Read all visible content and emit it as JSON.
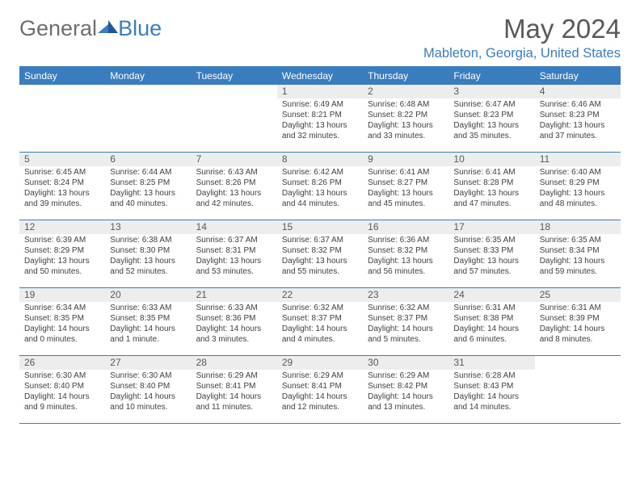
{
  "meta": {
    "month_title": "May 2024",
    "location": "Mableton, Georgia, United States"
  },
  "logo": {
    "text1": "General",
    "text2": "Blue",
    "color_gray": "#6d6e71",
    "color_blue": "#3b7ec0"
  },
  "styling": {
    "header_bg": "#3a7dbf",
    "header_fg": "#ffffff",
    "daynum_bg": "#ededed",
    "daynum_fg": "#58595b",
    "border_color": "#3a7dbf",
    "text_color": "#414042",
    "dow_fontsize": 12,
    "daynum_fontsize": 12,
    "info_fontsize": 10,
    "title_fontsize": 33,
    "location_fontsize": 16.5
  },
  "dow": [
    "Sunday",
    "Monday",
    "Tuesday",
    "Wednesday",
    "Thursday",
    "Friday",
    "Saturday"
  ],
  "weeks": [
    [
      {
        "day": ""
      },
      {
        "day": ""
      },
      {
        "day": ""
      },
      {
        "day": "1",
        "sunrise": "Sunrise: 6:49 AM",
        "sunset": "Sunset: 8:21 PM",
        "daylight": "Daylight: 13 hours\nand 32 minutes."
      },
      {
        "day": "2",
        "sunrise": "Sunrise: 6:48 AM",
        "sunset": "Sunset: 8:22 PM",
        "daylight": "Daylight: 13 hours\nand 33 minutes."
      },
      {
        "day": "3",
        "sunrise": "Sunrise: 6:47 AM",
        "sunset": "Sunset: 8:23 PM",
        "daylight": "Daylight: 13 hours\nand 35 minutes."
      },
      {
        "day": "4",
        "sunrise": "Sunrise: 6:46 AM",
        "sunset": "Sunset: 8:23 PM",
        "daylight": "Daylight: 13 hours\nand 37 minutes."
      }
    ],
    [
      {
        "day": "5",
        "sunrise": "Sunrise: 6:45 AM",
        "sunset": "Sunset: 8:24 PM",
        "daylight": "Daylight: 13 hours\nand 39 minutes."
      },
      {
        "day": "6",
        "sunrise": "Sunrise: 6:44 AM",
        "sunset": "Sunset: 8:25 PM",
        "daylight": "Daylight: 13 hours\nand 40 minutes."
      },
      {
        "day": "7",
        "sunrise": "Sunrise: 6:43 AM",
        "sunset": "Sunset: 8:26 PM",
        "daylight": "Daylight: 13 hours\nand 42 minutes."
      },
      {
        "day": "8",
        "sunrise": "Sunrise: 6:42 AM",
        "sunset": "Sunset: 8:26 PM",
        "daylight": "Daylight: 13 hours\nand 44 minutes."
      },
      {
        "day": "9",
        "sunrise": "Sunrise: 6:41 AM",
        "sunset": "Sunset: 8:27 PM",
        "daylight": "Daylight: 13 hours\nand 45 minutes."
      },
      {
        "day": "10",
        "sunrise": "Sunrise: 6:41 AM",
        "sunset": "Sunset: 8:28 PM",
        "daylight": "Daylight: 13 hours\nand 47 minutes."
      },
      {
        "day": "11",
        "sunrise": "Sunrise: 6:40 AM",
        "sunset": "Sunset: 8:29 PM",
        "daylight": "Daylight: 13 hours\nand 48 minutes."
      }
    ],
    [
      {
        "day": "12",
        "sunrise": "Sunrise: 6:39 AM",
        "sunset": "Sunset: 8:29 PM",
        "daylight": "Daylight: 13 hours\nand 50 minutes."
      },
      {
        "day": "13",
        "sunrise": "Sunrise: 6:38 AM",
        "sunset": "Sunset: 8:30 PM",
        "daylight": "Daylight: 13 hours\nand 52 minutes."
      },
      {
        "day": "14",
        "sunrise": "Sunrise: 6:37 AM",
        "sunset": "Sunset: 8:31 PM",
        "daylight": "Daylight: 13 hours\nand 53 minutes."
      },
      {
        "day": "15",
        "sunrise": "Sunrise: 6:37 AM",
        "sunset": "Sunset: 8:32 PM",
        "daylight": "Daylight: 13 hours\nand 55 minutes."
      },
      {
        "day": "16",
        "sunrise": "Sunrise: 6:36 AM",
        "sunset": "Sunset: 8:32 PM",
        "daylight": "Daylight: 13 hours\nand 56 minutes."
      },
      {
        "day": "17",
        "sunrise": "Sunrise: 6:35 AM",
        "sunset": "Sunset: 8:33 PM",
        "daylight": "Daylight: 13 hours\nand 57 minutes."
      },
      {
        "day": "18",
        "sunrise": "Sunrise: 6:35 AM",
        "sunset": "Sunset: 8:34 PM",
        "daylight": "Daylight: 13 hours\nand 59 minutes."
      }
    ],
    [
      {
        "day": "19",
        "sunrise": "Sunrise: 6:34 AM",
        "sunset": "Sunset: 8:35 PM",
        "daylight": "Daylight: 14 hours\nand 0 minutes."
      },
      {
        "day": "20",
        "sunrise": "Sunrise: 6:33 AM",
        "sunset": "Sunset: 8:35 PM",
        "daylight": "Daylight: 14 hours\nand 1 minute."
      },
      {
        "day": "21",
        "sunrise": "Sunrise: 6:33 AM",
        "sunset": "Sunset: 8:36 PM",
        "daylight": "Daylight: 14 hours\nand 3 minutes."
      },
      {
        "day": "22",
        "sunrise": "Sunrise: 6:32 AM",
        "sunset": "Sunset: 8:37 PM",
        "daylight": "Daylight: 14 hours\nand 4 minutes."
      },
      {
        "day": "23",
        "sunrise": "Sunrise: 6:32 AM",
        "sunset": "Sunset: 8:37 PM",
        "daylight": "Daylight: 14 hours\nand 5 minutes."
      },
      {
        "day": "24",
        "sunrise": "Sunrise: 6:31 AM",
        "sunset": "Sunset: 8:38 PM",
        "daylight": "Daylight: 14 hours\nand 6 minutes."
      },
      {
        "day": "25",
        "sunrise": "Sunrise: 6:31 AM",
        "sunset": "Sunset: 8:39 PM",
        "daylight": "Daylight: 14 hours\nand 8 minutes."
      }
    ],
    [
      {
        "day": "26",
        "sunrise": "Sunrise: 6:30 AM",
        "sunset": "Sunset: 8:40 PM",
        "daylight": "Daylight: 14 hours\nand 9 minutes."
      },
      {
        "day": "27",
        "sunrise": "Sunrise: 6:30 AM",
        "sunset": "Sunset: 8:40 PM",
        "daylight": "Daylight: 14 hours\nand 10 minutes."
      },
      {
        "day": "28",
        "sunrise": "Sunrise: 6:29 AM",
        "sunset": "Sunset: 8:41 PM",
        "daylight": "Daylight: 14 hours\nand 11 minutes."
      },
      {
        "day": "29",
        "sunrise": "Sunrise: 6:29 AM",
        "sunset": "Sunset: 8:41 PM",
        "daylight": "Daylight: 14 hours\nand 12 minutes."
      },
      {
        "day": "30",
        "sunrise": "Sunrise: 6:29 AM",
        "sunset": "Sunset: 8:42 PM",
        "daylight": "Daylight: 14 hours\nand 13 minutes."
      },
      {
        "day": "31",
        "sunrise": "Sunrise: 6:28 AM",
        "sunset": "Sunset: 8:43 PM",
        "daylight": "Daylight: 14 hours\nand 14 minutes."
      },
      {
        "day": ""
      }
    ]
  ]
}
